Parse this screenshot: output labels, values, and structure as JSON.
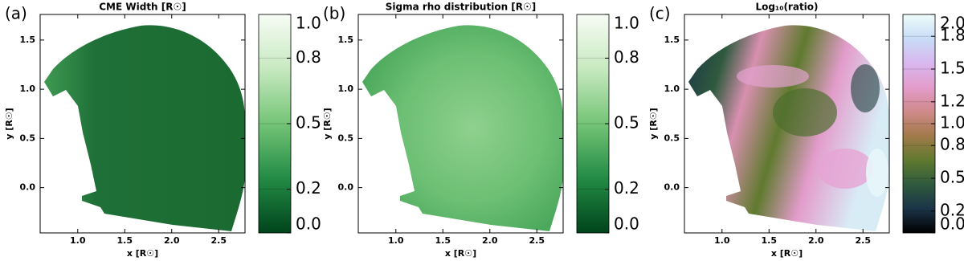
{
  "chart_data": [
    {
      "type": "heatmap",
      "panel_label": "(a)",
      "title": "CME Width [R☉]",
      "xlabel": "x [R☉]",
      "ylabel": "y [R☉]",
      "xlim": [
        0.6,
        2.78
      ],
      "ylim": [
        -0.46,
        1.76
      ],
      "xticks": [
        {
          "value": 1,
          "label": "1.0"
        },
        1.5,
        {
          "value": 2,
          "label": "2.0"
        },
        2.5
      ],
      "yticks": [
        {
          "value": 0,
          "label": "0.0"
        },
        0.5,
        {
          "value": 1,
          "label": "1.0"
        },
        1.5
      ],
      "colorbar": {
        "lim": [
          0,
          1
        ],
        "ticks": [
          {
            "value": 0,
            "label": "0.0"
          },
          0.2,
          0.5,
          0.8,
          {
            "value": 1,
            "label": "1.0"
          }
        ],
        "colors": [
          "#00441b",
          "#238b45",
          "#74c476",
          "#c7e9c0",
          "#f7fcf5"
        ]
      }
    },
    {
      "type": "heatmap",
      "panel_label": "(b)",
      "title": "Sigma rho distribution [R☉]",
      "xlabel": "x [R☉]",
      "ylabel": "y [R☉]",
      "xlim": [
        0.6,
        2.78
      ],
      "ylim": [
        -0.46,
        1.76
      ],
      "xticks": [
        {
          "value": 1,
          "label": "1.0"
        },
        1.5,
        {
          "value": 2,
          "label": "2.0"
        },
        2.5
      ],
      "yticks": [
        {
          "value": 0,
          "label": "0.0"
        },
        0.5,
        {
          "value": 1,
          "label": "1.0"
        },
        1.5
      ],
      "colorbar": {
        "lim": [
          0,
          1
        ],
        "ticks": [
          {
            "value": 0,
            "label": "0.0"
          },
          0.2,
          0.5,
          0.8,
          {
            "value": 1,
            "label": "1.0"
          }
        ],
        "colors": [
          "#00441b",
          "#238b45",
          "#74c476",
          "#c7e9c0",
          "#f7fcf5"
        ]
      }
    },
    {
      "type": "heatmap",
      "panel_label": "(c)",
      "title": "Log₁₀(ratio)",
      "xlabel": "x [R☉]",
      "ylabel": "y [R☉]",
      "xlim": [
        0.6,
        2.78
      ],
      "ylim": [
        -0.46,
        1.76
      ],
      "xticks": [
        {
          "value": 1,
          "label": "1.0"
        },
        1.5,
        {
          "value": 2,
          "label": "2.0"
        },
        2.5
      ],
      "yticks": [
        {
          "value": 0,
          "label": "0.0"
        },
        0.5,
        {
          "value": 1,
          "label": "1.0"
        },
        1.5
      ],
      "colorbar": {
        "lim": [
          0,
          2
        ],
        "ticks": [
          {
            "value": 0,
            "label": "0.0"
          },
          0.2,
          0.5,
          0.8,
          {
            "value": 1,
            "label": "1.0"
          },
          1.2,
          1.5,
          1.8,
          {
            "value": 2,
            "label": "2.0"
          }
        ],
        "colors": [
          "#000000",
          "#1b3448",
          "#2f5a3e",
          "#5f7a2e",
          "#a27a4a",
          "#d08a8a",
          "#e39ccb",
          "#d8b8ef",
          "#c8dcf6",
          "#eefcfa"
        ]
      }
    }
  ]
}
